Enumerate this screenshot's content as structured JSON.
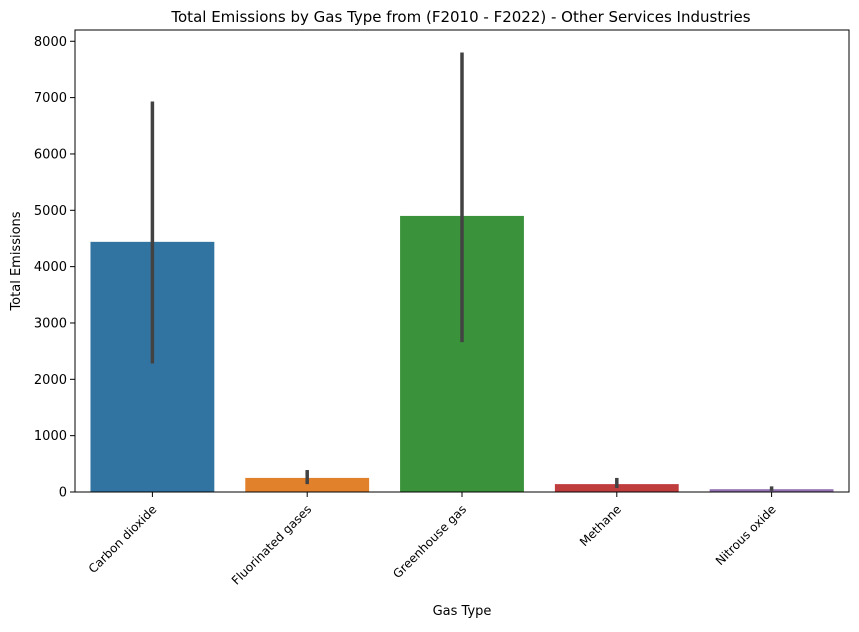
{
  "chart_data": {
    "type": "bar",
    "title": "Total Emissions by Gas Type from (F2010 - F2022) - Other Services Industries",
    "xlabel": "Gas Type",
    "ylabel": "Total Emissions",
    "categories": [
      "Carbon dioxide",
      "Fluorinated gases",
      "Greenhouse gas",
      "Methane",
      "Nitrous oxide"
    ],
    "values": [
      4440,
      250,
      4900,
      140,
      50
    ],
    "error_bars": [
      {
        "low": 2280,
        "high": 6930
      },
      {
        "low": 140,
        "high": 390
      },
      {
        "low": 2660,
        "high": 7800
      },
      {
        "low": 70,
        "high": 250
      },
      {
        "low": 20,
        "high": 100
      }
    ],
    "colors": [
      "#3274a1",
      "#e1812c",
      "#3a923a",
      "#c03d3e",
      "#9372b2"
    ],
    "error_color": "#424242",
    "ylim": [
      0,
      8200
    ],
    "yticks": [
      0,
      1000,
      2000,
      3000,
      4000,
      5000,
      6000,
      7000,
      8000
    ],
    "ytick_labels": [
      "0",
      "1000",
      "2000",
      "3000",
      "4000",
      "5000",
      "6000",
      "7000",
      "8000"
    ],
    "grid": false,
    "legend": "none"
  }
}
